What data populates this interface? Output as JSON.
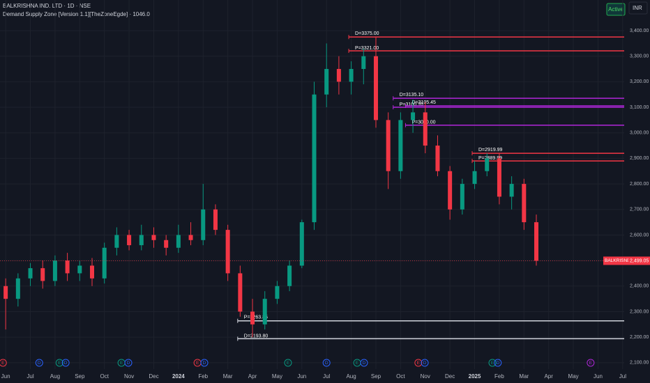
{
  "chart_data": {
    "type": "candlestick",
    "title": "BALKRISHNA IND. LTD · 1D · NSE",
    "subtitle": "Demand Supply Zone [Version 1.1][TheZoneEgde] · 1046.0",
    "status": "Active",
    "currency": "INR",
    "symbol": "BALKRISND",
    "last_price": {
      "value": 2499.05,
      "label": "2,499.05"
    },
    "up_color": "#089981",
    "down_color": "#f23645",
    "grid": true,
    "xlim": [
      -0.23,
      25.06
    ],
    "ylim": [
      2075,
      3520
    ],
    "xticks": [
      {
        "value": 0,
        "label": "Jun"
      },
      {
        "value": 1,
        "label": "Jul"
      },
      {
        "value": 2,
        "label": "Aug"
      },
      {
        "value": 3,
        "label": "Sep"
      },
      {
        "value": 4,
        "label": "Oct"
      },
      {
        "value": 5,
        "label": "Nov"
      },
      {
        "value": 6,
        "label": "Dec"
      },
      {
        "value": 7,
        "label": "2024"
      },
      {
        "value": 8,
        "label": "Feb"
      },
      {
        "value": 9,
        "label": "Mar"
      },
      {
        "value": 10,
        "label": "Apr"
      },
      {
        "value": 11,
        "label": "May"
      },
      {
        "value": 12,
        "label": "Jun"
      },
      {
        "value": 13,
        "label": "Jul"
      },
      {
        "value": 14,
        "label": "Aug"
      },
      {
        "value": 15,
        "label": "Sep"
      },
      {
        "value": 16,
        "label": "Oct"
      },
      {
        "value": 17,
        "label": "Nov"
      },
      {
        "value": 18,
        "label": "Dec"
      },
      {
        "value": 19,
        "label": "2025"
      },
      {
        "value": 20,
        "label": "Feb"
      },
      {
        "value": 21,
        "label": "Mar"
      },
      {
        "value": 22,
        "label": "Apr"
      },
      {
        "value": 23,
        "label": "May"
      },
      {
        "value": 24,
        "label": "Jun"
      },
      {
        "value": 25,
        "label": "Jul"
      }
    ],
    "yticks": [
      {
        "value": 2100,
        "label": "2,100.00"
      },
      {
        "value": 2200,
        "label": "2,200.00"
      },
      {
        "value": 2300,
        "label": "2,300.00"
      },
      {
        "value": 2400,
        "label": "2,400.00"
      },
      {
        "value": 2500,
        "label": "2,500.00"
      },
      {
        "value": 2600,
        "label": "2,600.00"
      },
      {
        "value": 2700,
        "label": "2,700.00"
      },
      {
        "value": 2800,
        "label": "2,800.00"
      },
      {
        "value": 2900,
        "label": "2,900.00"
      },
      {
        "value": 3000,
        "label": "3,000.00"
      },
      {
        "value": 3100,
        "label": "3,100.00"
      },
      {
        "value": 3200,
        "label": "3,200.00"
      },
      {
        "value": 3300,
        "label": "3,300.00"
      },
      {
        "value": 3400,
        "label": "3,400.00"
      }
    ],
    "candles": {
      "x": [
        0,
        0.5,
        1,
        1.5,
        2,
        2.5,
        3,
        3.5,
        4,
        4.5,
        5,
        5.5,
        6,
        6.5,
        7,
        7.5,
        8,
        8.5,
        9,
        9.5,
        10,
        10.5,
        11,
        11.5,
        12,
        12.5,
        13,
        13.5,
        14,
        14.5,
        15,
        15.5,
        16,
        16.5,
        17,
        17.5,
        18,
        18.5,
        19,
        19.5,
        20,
        20.5,
        21,
        21.5
      ],
      "open": [
        2400,
        2350,
        2430,
        2470,
        2420,
        2500,
        2450,
        2480,
        2430,
        2550,
        2600,
        2560,
        2600,
        2580,
        2550,
        2600,
        2580,
        2700,
        2620,
        2450,
        2300,
        2250,
        2350,
        2400,
        2480,
        2650,
        3150,
        3250,
        3200,
        3250,
        3300,
        3050,
        2850,
        3050,
        3080,
        2950,
        2850,
        2700,
        2800,
        2850,
        2900,
        2750,
        2800,
        2650
      ],
      "high": [
        2430,
        2450,
        2490,
        2500,
        2520,
        2530,
        2500,
        2510,
        2570,
        2630,
        2620,
        2640,
        2630,
        2600,
        2640,
        2650,
        2800,
        2720,
        2640,
        2480,
        2350,
        2380,
        2420,
        2500,
        2660,
        3200,
        3350,
        3300,
        3280,
        3330,
        3375,
        3080,
        3080,
        3130,
        3120,
        2990,
        2870,
        2820,
        2890,
        2920,
        2920,
        2830,
        2820,
        2680
      ],
      "low": [
        2230,
        2320,
        2400,
        2390,
        2400,
        2420,
        2420,
        2400,
        2410,
        2520,
        2540,
        2540,
        2550,
        2520,
        2530,
        2560,
        2560,
        2600,
        2420,
        2280,
        2200,
        2230,
        2330,
        2380,
        2470,
        2620,
        3100,
        3150,
        3150,
        3190,
        3020,
        2780,
        2820,
        3000,
        2920,
        2830,
        2660,
        2680,
        2780,
        2830,
        2720,
        2700,
        2620,
        2480
      ],
      "close": [
        2350,
        2430,
        2470,
        2420,
        2500,
        2450,
        2480,
        2430,
        2550,
        2600,
        2560,
        2600,
        2580,
        2550,
        2600,
        2580,
        2700,
        2620,
        2450,
        2300,
        2250,
        2350,
        2400,
        2480,
        2650,
        3150,
        3250,
        3200,
        3250,
        3300,
        3050,
        2850,
        3050,
        3080,
        2950,
        2850,
        2700,
        2800,
        2850,
        2900,
        2750,
        2800,
        2650,
        2499.05
      ]
    },
    "zones": [
      {
        "label": "D=3375.00",
        "value": 3375,
        "start": 13.9,
        "color": "#f23645"
      },
      {
        "label": "P=3321.00",
        "value": 3321,
        "start": 13.9,
        "color": "#f23645"
      },
      {
        "label": "D=3135.10",
        "value": 3135.1,
        "start": 15.7,
        "color": "#b026d9"
      },
      {
        "label": "P=3100.10",
        "value": 3100.1,
        "start": 15.7,
        "color": "#b026d9"
      },
      {
        "label": "D=3105.45",
        "value": 3105.45,
        "start": 16.2,
        "color": "#b026d9"
      },
      {
        "label": "P=3030.00",
        "value": 3030,
        "start": 16.2,
        "color": "#b026d9"
      },
      {
        "label": "D=2919.99",
        "value": 2919.99,
        "start": 18.9,
        "color": "#f23645"
      },
      {
        "label": "P=2889.99",
        "value": 2889.99,
        "start": 18.9,
        "color": "#f23645"
      },
      {
        "label": "P=2263.85",
        "value": 2263.85,
        "start": 9.4,
        "color": "#d1d4dc"
      },
      {
        "label": "D=2193.80",
        "value": 2193.8,
        "start": 9.4,
        "color": "#d1d4dc"
      }
    ],
    "events": [
      {
        "x": -0.11,
        "label": "E",
        "color": "#f23645"
      },
      {
        "x": 1.36,
        "label": "D",
        "color": "#2962ff"
      },
      {
        "x": 2.18,
        "label": "E",
        "color": "#089981"
      },
      {
        "x": 2.43,
        "label": "D",
        "color": "#2962ff"
      },
      {
        "x": 4.69,
        "label": "E",
        "color": "#089981"
      },
      {
        "x": 4.97,
        "label": "D",
        "color": "#2962ff"
      },
      {
        "x": 7.77,
        "label": "E",
        "color": "#f23645"
      },
      {
        "x": 8.05,
        "label": "D",
        "color": "#2962ff"
      },
      {
        "x": 11.44,
        "label": "E",
        "color": "#089981"
      },
      {
        "x": 13.0,
        "label": "D",
        "color": "#2962ff"
      },
      {
        "x": 14.24,
        "label": "E",
        "color": "#089981"
      },
      {
        "x": 14.52,
        "label": "D",
        "color": "#2962ff"
      },
      {
        "x": 16.72,
        "label": "E",
        "color": "#f23645"
      },
      {
        "x": 16.98,
        "label": "D",
        "color": "#2962ff"
      },
      {
        "x": 19.72,
        "label": "E",
        "color": "#089981"
      },
      {
        "x": 19.94,
        "label": "D",
        "color": "#2962ff"
      },
      {
        "x": 23.7,
        "label": "E",
        "color": "#b026d9"
      }
    ]
  }
}
